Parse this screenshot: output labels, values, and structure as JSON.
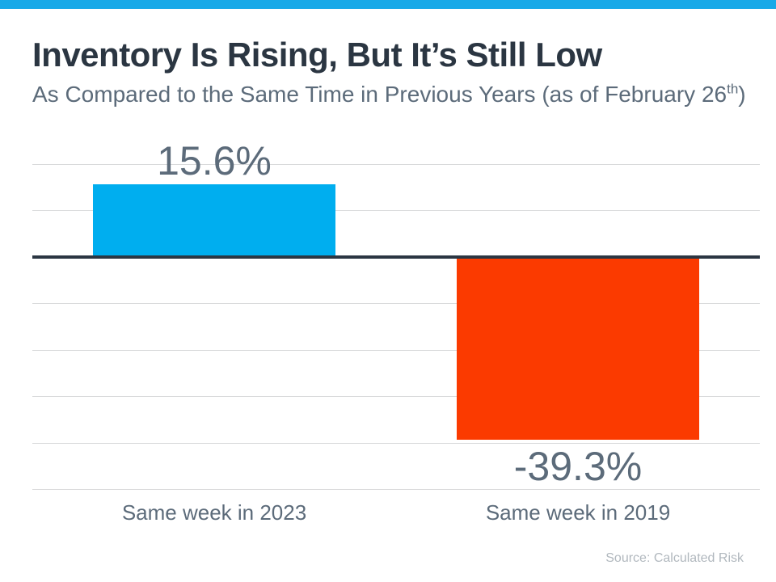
{
  "page": {
    "accent_strip_color": "#18A9E8",
    "background_color": "#FFFFFF"
  },
  "header": {
    "title": "Inventory Is Rising, But It’s Still Low",
    "subtitle_prefix": "As Compared to the Same Time in Previous Years (as of February 26",
    "subtitle_sup": "th",
    "subtitle_suffix": ")"
  },
  "chart_data": {
    "type": "bar",
    "title": "Inventory Is Rising, But It’s Still Low",
    "subtitle": "As Compared to the Same Time in Previous Years (as of February 26th)",
    "categories": [
      "Same week in 2023",
      "Same week in 2019"
    ],
    "values": [
      15.6,
      -39.3
    ],
    "value_labels": [
      "15.6%",
      "-39.3%"
    ],
    "bar_colors": [
      "#00AEEF",
      "#FB3A00"
    ],
    "xlabel": "",
    "ylabel": "",
    "ylim": [
      -50,
      20
    ],
    "grid_step": 10,
    "grid": true,
    "legend_position": "none",
    "gridline_color": "#D9DADB",
    "zero_line_color": "#2B3642",
    "label_color": "#5C6B7A"
  },
  "footer": {
    "source": "Source: Calculated Risk"
  }
}
